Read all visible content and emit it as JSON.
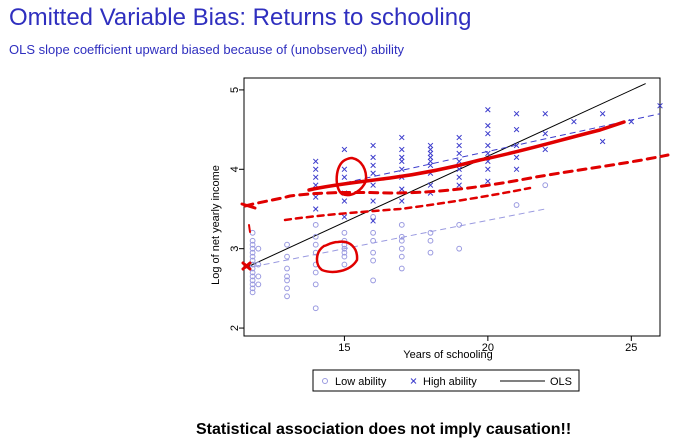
{
  "slide": {
    "title": "Omitted Variable Bias: Returns to schooling",
    "subtitle": "OLS slope coefficient upward biased because of (unobserved) ability",
    "footer": "Statistical association does not imply causation!!"
  },
  "colors": {
    "title": "#2f2fbf",
    "low_ability": "#9a9ae0",
    "high_ability": "#3c3ccc",
    "ols": "#000000",
    "annotation": "#e00000"
  },
  "chart_data": {
    "type": "scatter",
    "xlabel": "Years of schooling",
    "ylabel": "Log of net yearly income",
    "xlim": [
      11.5,
      26
    ],
    "ylim": [
      1.9,
      5.15
    ],
    "x_ticks": [
      15,
      20,
      25
    ],
    "y_ticks": [
      2,
      3,
      4,
      5
    ],
    "grid": false,
    "legend": {
      "position": "bottom",
      "entries": [
        "Low ability",
        "High ability",
        "OLS"
      ]
    },
    "series": [
      {
        "name": "Low ability",
        "marker": "circle",
        "points": [
          [
            11.8,
            2.45
          ],
          [
            11.8,
            2.5
          ],
          [
            11.8,
            2.55
          ],
          [
            11.8,
            2.6
          ],
          [
            11.8,
            2.65
          ],
          [
            11.8,
            2.7
          ],
          [
            11.8,
            2.75
          ],
          [
            11.8,
            2.8
          ],
          [
            11.8,
            2.85
          ],
          [
            11.8,
            2.9
          ],
          [
            11.8,
            2.95
          ],
          [
            11.8,
            3.0
          ],
          [
            11.8,
            3.05
          ],
          [
            11.8,
            3.1
          ],
          [
            11.8,
            3.2
          ],
          [
            12,
            2.55
          ],
          [
            12,
            2.65
          ],
          [
            12,
            2.8
          ],
          [
            12,
            3.0
          ],
          [
            13,
            2.4
          ],
          [
            13,
            2.5
          ],
          [
            13,
            2.6
          ],
          [
            13,
            2.65
          ],
          [
            13,
            2.75
          ],
          [
            13,
            2.9
          ],
          [
            13,
            3.05
          ],
          [
            14,
            2.25
          ],
          [
            14,
            2.55
          ],
          [
            14,
            2.7
          ],
          [
            14,
            2.8
          ],
          [
            14,
            2.95
          ],
          [
            14,
            3.05
          ],
          [
            14,
            3.15
          ],
          [
            14,
            3.3
          ],
          [
            15,
            2.8
          ],
          [
            15,
            2.9
          ],
          [
            15,
            2.95
          ],
          [
            15,
            3.0
          ],
          [
            15,
            3.05
          ],
          [
            15,
            3.1
          ],
          [
            15,
            3.2
          ],
          [
            16,
            2.6
          ],
          [
            16,
            2.85
          ],
          [
            16,
            2.95
          ],
          [
            16,
            3.1
          ],
          [
            16,
            3.2
          ],
          [
            16,
            3.4
          ],
          [
            17,
            2.75
          ],
          [
            17,
            2.9
          ],
          [
            17,
            3.0
          ],
          [
            17,
            3.1
          ],
          [
            17,
            3.15
          ],
          [
            17,
            3.3
          ],
          [
            18,
            2.95
          ],
          [
            18,
            3.1
          ],
          [
            18,
            3.2
          ],
          [
            19,
            3.0
          ],
          [
            19,
            3.3
          ],
          [
            21,
            3.55
          ],
          [
            22,
            3.8
          ]
        ]
      },
      {
        "name": "High ability",
        "marker": "x",
        "points": [
          [
            14,
            3.5
          ],
          [
            14,
            3.65
          ],
          [
            14,
            3.8
          ],
          [
            14,
            3.9
          ],
          [
            14,
            4.0
          ],
          [
            14,
            4.1
          ],
          [
            15,
            3.4
          ],
          [
            15,
            3.6
          ],
          [
            15,
            3.7
          ],
          [
            15,
            3.9
          ],
          [
            15,
            4.0
          ],
          [
            15,
            4.25
          ],
          [
            16,
            3.35
          ],
          [
            16,
            3.6
          ],
          [
            16,
            3.8
          ],
          [
            16,
            3.95
          ],
          [
            16,
            4.05
          ],
          [
            16,
            4.15
          ],
          [
            16,
            4.3
          ],
          [
            17,
            3.6
          ],
          [
            17,
            3.75
          ],
          [
            17,
            3.9
          ],
          [
            17,
            4.0
          ],
          [
            17,
            4.1
          ],
          [
            17,
            4.15
          ],
          [
            17,
            4.25
          ],
          [
            17,
            4.4
          ],
          [
            18,
            3.7
          ],
          [
            18,
            3.8
          ],
          [
            18,
            3.95
          ],
          [
            18,
            4.05
          ],
          [
            18,
            4.1
          ],
          [
            18,
            4.15
          ],
          [
            18,
            4.2
          ],
          [
            18,
            4.25
          ],
          [
            18,
            4.3
          ],
          [
            19,
            3.8
          ],
          [
            19,
            3.9
          ],
          [
            19,
            4.0
          ],
          [
            19,
            4.1
          ],
          [
            19,
            4.2
          ],
          [
            19,
            4.3
          ],
          [
            19,
            4.4
          ],
          [
            20,
            3.85
          ],
          [
            20,
            4.0
          ],
          [
            20,
            4.1
          ],
          [
            20,
            4.2
          ],
          [
            20,
            4.3
          ],
          [
            20,
            4.45
          ],
          [
            20,
            4.55
          ],
          [
            20,
            4.75
          ],
          [
            21,
            4.0
          ],
          [
            21,
            4.15
          ],
          [
            21,
            4.3
          ],
          [
            21,
            4.5
          ],
          [
            21,
            4.7
          ],
          [
            22,
            4.25
          ],
          [
            22,
            4.45
          ],
          [
            22,
            4.7
          ],
          [
            23,
            4.6
          ],
          [
            24,
            4.35
          ],
          [
            24,
            4.7
          ],
          [
            25,
            4.6
          ],
          [
            26,
            4.8
          ]
        ]
      }
    ],
    "fit_lines": [
      {
        "series": "OLS",
        "style": "solid",
        "from": [
          11.5,
          2.75
        ],
        "to": [
          25.5,
          5.08
        ]
      },
      {
        "series": "Low ability",
        "style": "dashed",
        "from": [
          11.5,
          2.75
        ],
        "to": [
          22,
          3.5
        ]
      },
      {
        "series": "High ability",
        "style": "dashed",
        "from": [
          14,
          3.75
        ],
        "to": [
          26,
          4.7
        ]
      }
    ]
  }
}
